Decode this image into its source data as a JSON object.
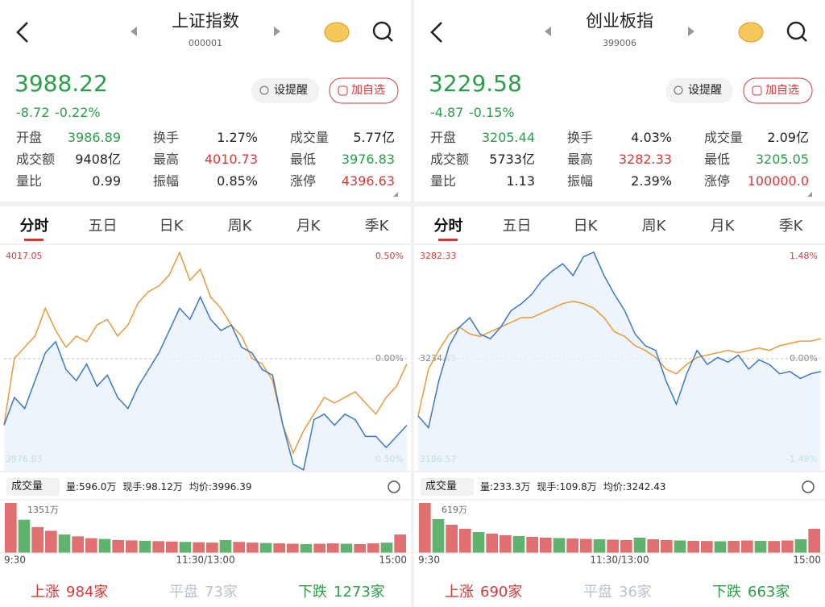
{
  "panels": [
    {
      "title": "上证指数",
      "code": "000001",
      "price": "3988.22",
      "change": "-8.72",
      "change_pct": "-0.22%",
      "remind": "设提醒",
      "add": "加自选",
      "stats": [
        {
          "label": "开盘",
          "value": "3986.89",
          "color": "#2a9d49"
        },
        {
          "label": "换手",
          "value": "1.27%",
          "color": "#222222"
        },
        {
          "label": "成交量",
          "value": "5.77亿",
          "color": "#222222"
        },
        {
          "label": "成交额",
          "value": "9408亿",
          "color": "#222222"
        },
        {
          "label": "最高",
          "value": "4010.73",
          "color": "#d23a3a"
        },
        {
          "label": "最低",
          "value": "3976.83",
          "color": "#2a9d49"
        },
        {
          "label": "量比",
          "value": "0.99",
          "color": "#222222"
        },
        {
          "label": "振幅",
          "value": "0.85%",
          "color": "#222222"
        },
        {
          "label": "涨停",
          "value": "4396.63",
          "color": "#d23a3a"
        }
      ],
      "tabs": [
        "分时",
        "五日",
        "日K",
        "周K",
        "月K",
        "季K"
      ],
      "chart_data": {
        "type": "line",
        "ylim": [
          3976.83,
          4017.05
        ],
        "yticks": [
          3976.83,
          4017.05
        ],
        "y2lim": [
          -0.5,
          0.5
        ],
        "y2ticks": [
          {
            "value": -0.5,
            "label": "-0.50%"
          },
          {
            "value": 0,
            "label": "0.00%"
          },
          {
            "value": 0.5,
            "label": "0.50%"
          }
        ],
        "series": [
          {
            "color": "#3b78c9",
            "values": [
              3985,
              3990,
              3988,
              3993,
              3998,
              4000,
              3995,
              3993,
              3996,
              3992,
              3994,
              3990,
              3988,
              3992,
              3995,
              3998,
              4002,
              4006,
              4004,
              4008,
              4004,
              4002,
              4003,
              3999,
              3998,
              3995,
              3994,
              3985,
              3978,
              3977,
              3986,
              3987,
              3985,
              3987,
              3986,
              3983,
              3983,
              3981,
              3983,
              3985
            ]
          },
          {
            "color": "#e89a3c",
            "values": [
              3985,
              3997,
              3999,
              4001,
              4006,
              4002,
              3999,
              4001,
              4000,
              4003,
              4004,
              4001,
              4003,
              4007,
              4009,
              4010,
              4012,
              4016,
              4011,
              4013,
              4008,
              4006,
              4003,
              4001,
              3997,
              3996,
              3993,
              3985,
              3980,
              3984,
              3987,
              3990,
              3989,
              3990,
              3991,
              3989,
              3987,
              3990,
              3992,
              3996
            ]
          }
        ],
        "time_labels": [
          "9:30",
          "11:30/13:00",
          "15:00"
        ]
      },
      "volume": {
        "title": "成交量",
        "stats": [
          "量:596.0万",
          "现手:98.12万",
          "均价:3996.39"
        ],
        "max_label": "1351万",
        "ylim": [
          0,
          1351
        ],
        "values": [
          1351,
          900,
          700,
          600,
          500,
          450,
          400,
          380,
          350,
          340,
          330,
          320,
          310,
          300,
          290,
          280,
          350,
          300,
          280,
          270,
          260,
          250,
          240,
          250,
          260,
          250,
          240,
          260,
          280,
          500
        ]
      },
      "footer": [
        {
          "label": "上涨",
          "value": "984家",
          "color": "#d23a3a"
        },
        {
          "label": "平盘",
          "value": "73家",
          "color": "#b8c2cc"
        },
        {
          "label": "下跌",
          "value": "1273家",
          "color": "#2a9d49"
        }
      ]
    },
    {
      "title": "创业板指",
      "code": "399006",
      "price": "3229.58",
      "change": "-4.87",
      "change_pct": "-0.15%",
      "remind": "设提醒",
      "add": "加自选",
      "stats": [
        {
          "label": "开盘",
          "value": "3205.44",
          "color": "#2a9d49"
        },
        {
          "label": "换手",
          "value": "4.03%",
          "color": "#222222"
        },
        {
          "label": "成交量",
          "value": "2.09亿",
          "color": "#222222"
        },
        {
          "label": "成交额",
          "value": "5733亿",
          "color": "#222222"
        },
        {
          "label": "最高",
          "value": "3282.33",
          "color": "#d23a3a"
        },
        {
          "label": "最低",
          "value": "3205.05",
          "color": "#2a9d49"
        },
        {
          "label": "量比",
          "value": "1.13",
          "color": "#222222"
        },
        {
          "label": "振幅",
          "value": "2.39%",
          "color": "#222222"
        },
        {
          "label": "涨停",
          "value": "100000.0",
          "color": "#d23a3a"
        }
      ],
      "tabs": [
        "分时",
        "五日",
        "日K",
        "周K",
        "月K",
        "季K"
      ],
      "chart_data": {
        "type": "line",
        "ylim": [
          3186.57,
          3282.33
        ],
        "yticks": [
          3186.57,
          3234.45,
          3282.33
        ],
        "y2lim": [
          -1.48,
          1.48
        ],
        "y2ticks": [
          {
            "value": -1.48,
            "label": "-1.48%"
          },
          {
            "value": 0,
            "label": "0.00%"
          },
          {
            "value": 1.48,
            "label": "1.48%"
          }
        ],
        "series": [
          {
            "color": "#3b78c9",
            "values": [
              3210,
              3205,
              3225,
              3240,
              3248,
              3252,
              3245,
              3243,
              3248,
              3255,
              3258,
              3262,
              3268,
              3272,
              3275,
              3270,
              3278,
              3280,
              3270,
              3262,
              3255,
              3245,
              3240,
              3238,
              3225,
              3215,
              3228,
              3238,
              3232,
              3235,
              3233,
              3236,
              3230,
              3234,
              3232,
              3228,
              3229,
              3226,
              3228,
              3229
            ]
          },
          {
            "color": "#e89a3c",
            "values": [
              3210,
              3230,
              3238,
              3245,
              3248,
              3245,
              3244,
              3246,
              3248,
              3250,
              3252,
              3252,
              3254,
              3256,
              3258,
              3259,
              3258,
              3256,
              3252,
              3246,
              3244,
              3240,
              3238,
              3235,
              3230,
              3228,
              3232,
              3235,
              3236,
              3237,
              3238,
              3237,
              3238,
              3239,
              3238,
              3240,
              3241,
              3242,
              3242,
              3243
            ]
          }
        ],
        "time_labels": [
          "9:30",
          "11:30/13:00",
          "15:00"
        ]
      },
      "volume": {
        "title": "成交量",
        "stats": [
          "量:233.3万",
          "现手:109.8万",
          "均价:3242.43"
        ],
        "max_label": "619万",
        "ylim": [
          0,
          619
        ],
        "values": [
          619,
          420,
          350,
          300,
          260,
          240,
          220,
          210,
          200,
          190,
          185,
          180,
          175,
          170,
          165,
          160,
          190,
          170,
          160,
          155,
          150,
          148,
          145,
          150,
          155,
          150,
          148,
          155,
          170,
          300
        ]
      },
      "footer": [
        {
          "label": "上涨",
          "value": "690家",
          "color": "#d23a3a"
        },
        {
          "label": "平盘",
          "value": "36家",
          "color": "#b8c2cc"
        },
        {
          "label": "下跌",
          "value": "663家",
          "color": "#2a9d49"
        }
      ]
    }
  ]
}
